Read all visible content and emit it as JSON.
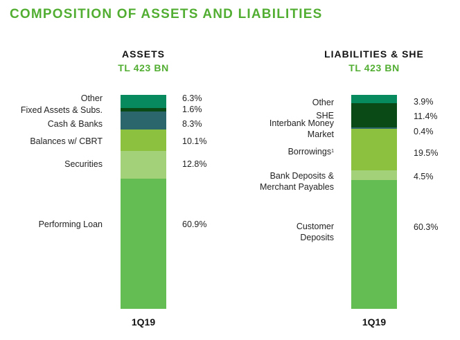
{
  "title": "COMPOSITION OF ASSETS AND LIABILITIES",
  "chart_data": [
    {
      "type": "bar",
      "stacked": true,
      "title": "ASSETS",
      "subtitle": "TL 423 BN",
      "category": "1Q19",
      "unit": "%",
      "series": [
        {
          "name": "Performing Loan",
          "value": 60.9,
          "label": "60.9%",
          "color": "#63bd52"
        },
        {
          "name": "Securities",
          "value": 12.8,
          "label": "12.8%",
          "color": "#a3d17a"
        },
        {
          "name": "Balances w/ CBRT",
          "value": 10.1,
          "label": "10.1%",
          "color": "#8cc03f"
        },
        {
          "name": "Cash & Banks",
          "value": 8.3,
          "label": "8.3%",
          "color": "#2b666d"
        },
        {
          "name": "Fixed Assets & Subs.",
          "value": 1.6,
          "label": "1.6%",
          "color": "#0a4a17"
        },
        {
          "name": "Other",
          "value": 6.3,
          "label": "6.3%",
          "color": "#078a5e"
        }
      ]
    },
    {
      "type": "bar",
      "stacked": true,
      "title": "LIABILITIES & SHE",
      "subtitle": "TL 423 BN",
      "category": "1Q19",
      "unit": "%",
      "series": [
        {
          "name": "Customer Deposits",
          "value": 60.3,
          "label": "60.3%",
          "color": "#63bd52"
        },
        {
          "name": "Bank Deposits & Merchant Payables",
          "value": 4.5,
          "label": "4.5%",
          "color": "#a3d17a"
        },
        {
          "name": "Borrowings",
          "footnote": "1",
          "value": 19.5,
          "label": "19.5%",
          "color": "#8cc03f"
        },
        {
          "name": "Interbank Money Market",
          "value": 0.4,
          "label": "0.4%",
          "color": "#2b666d"
        },
        {
          "name": "SHE",
          "value": 11.4,
          "label": "11.4%",
          "color": "#0a4a17"
        },
        {
          "name": "Other",
          "value": 3.9,
          "label": "3.9%",
          "color": "#078a5e"
        }
      ]
    }
  ]
}
